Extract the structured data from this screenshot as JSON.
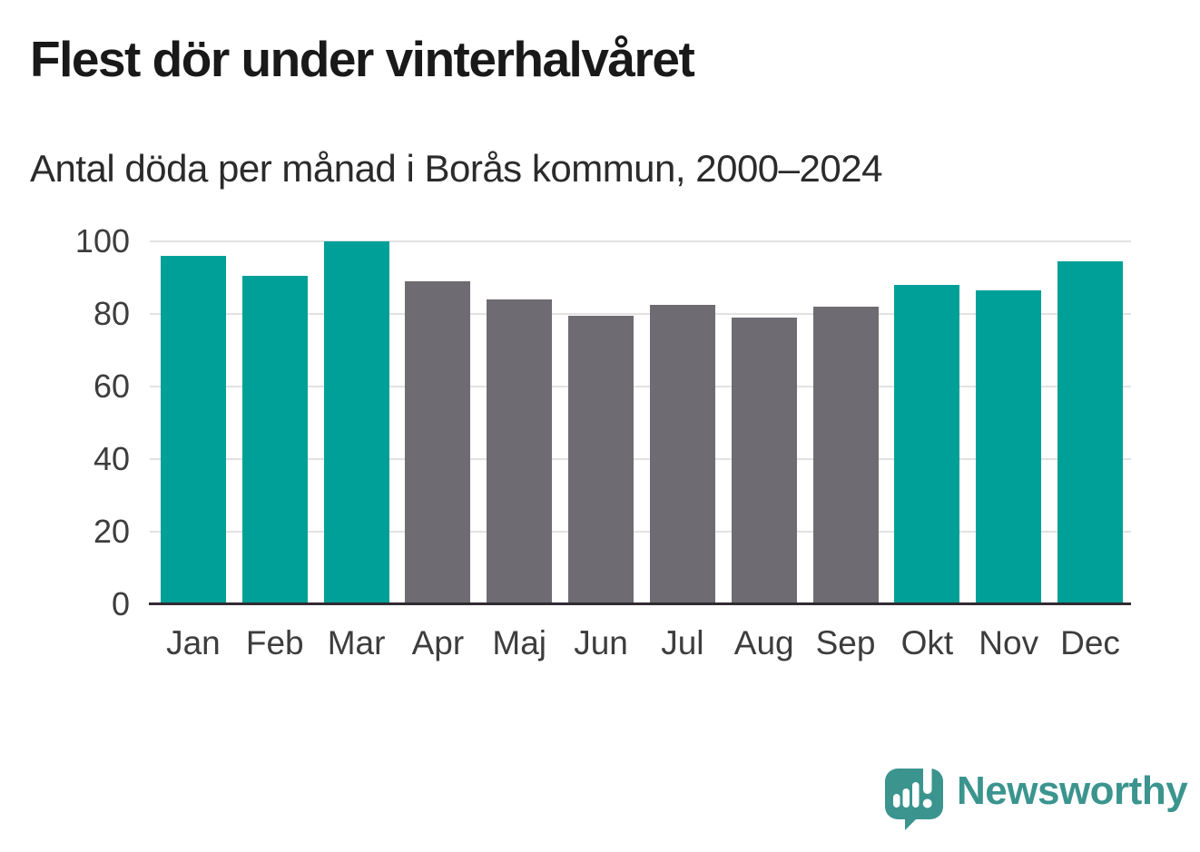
{
  "header": {
    "title": "Flest dör under vinterhalvåret",
    "subtitle": "Antal döda per månad i Borås kommun, 2000–2024"
  },
  "chart_data": {
    "type": "bar",
    "title": "Flest dör under vinterhalvåret",
    "subtitle": "Antal döda per månad i Borås kommun, 2000–2024",
    "categories": [
      "Jan",
      "Feb",
      "Mar",
      "Apr",
      "Maj",
      "Jun",
      "Jul",
      "Aug",
      "Sep",
      "Okt",
      "Nov",
      "Dec"
    ],
    "values": [
      96,
      90.5,
      100,
      89,
      84,
      79.5,
      82.5,
      79,
      82,
      88,
      86.5,
      94.5
    ],
    "bar_colors": [
      "#00a099",
      "#00a099",
      "#00a099",
      "#6e6c72",
      "#6e6c72",
      "#6e6c72",
      "#6e6c72",
      "#6e6c72",
      "#6e6c72",
      "#00a099",
      "#00a099",
      "#00a099"
    ],
    "highlight_color": "#00a099",
    "muted_color": "#6e6c72",
    "xlabel": "",
    "ylabel": "",
    "ylim": [
      0,
      100
    ],
    "yticks": [
      0,
      20,
      40,
      60,
      80,
      100
    ],
    "grid": "horizontal-only",
    "legend": "none",
    "gridline_color": "#e2e2e2",
    "axis_color": "#2f2c30",
    "tick_label_color": "#3d3d3d"
  },
  "branding": {
    "logo_text": "Newsworthy",
    "logo_color": "#3b948e",
    "logo_icon": "speech-bubble-bar-chart-icon"
  }
}
